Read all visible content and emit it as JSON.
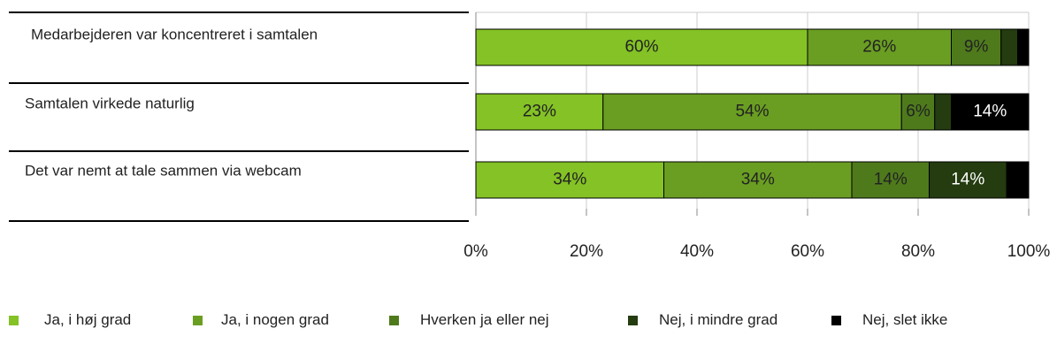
{
  "chart_data": {
    "type": "stacked-bar-horizontal",
    "categories": [
      "Medarbejderen var koncentreret i samtalen",
      "Samtalen virkede naturlig",
      "Det var nemt at tale sammen via webcam"
    ],
    "series": [
      {
        "name": "Ja, i høj grad",
        "color": "#84c225",
        "values": [
          60,
          23,
          34
        ],
        "value_labels": [
          "60%",
          "23%",
          "34%"
        ]
      },
      {
        "name": "Ja, i nogen grad",
        "color": "#6a9e22",
        "values": [
          26,
          54,
          34
        ],
        "value_labels": [
          "26%",
          "54%",
          "34%"
        ]
      },
      {
        "name": "Hverken ja eller nej",
        "color": "#4e7a1c",
        "values": [
          9,
          6,
          14
        ],
        "value_labels": [
          "9%",
          "6%",
          "14%"
        ]
      },
      {
        "name": "Nej, i mindre grad",
        "color": "#243c10",
        "values": [
          3,
          3,
          14
        ],
        "value_labels": [
          null,
          null,
          "14%"
        ]
      },
      {
        "name": "Nej, slet ikke",
        "color": "#000000",
        "values": [
          2,
          14,
          4
        ],
        "value_labels": [
          null,
          "14%",
          null
        ]
      }
    ],
    "xlim": [
      0,
      100
    ],
    "xticks": [
      {
        "value": 0,
        "label": "0%"
      },
      {
        "value": 20,
        "label": "20%"
      },
      {
        "value": 40,
        "label": "40%"
      },
      {
        "value": 60,
        "label": "60%"
      },
      {
        "value": 80,
        "label": "80%"
      },
      {
        "value": 100,
        "label": "100%"
      }
    ],
    "grid": true,
    "legend": "bottom"
  }
}
